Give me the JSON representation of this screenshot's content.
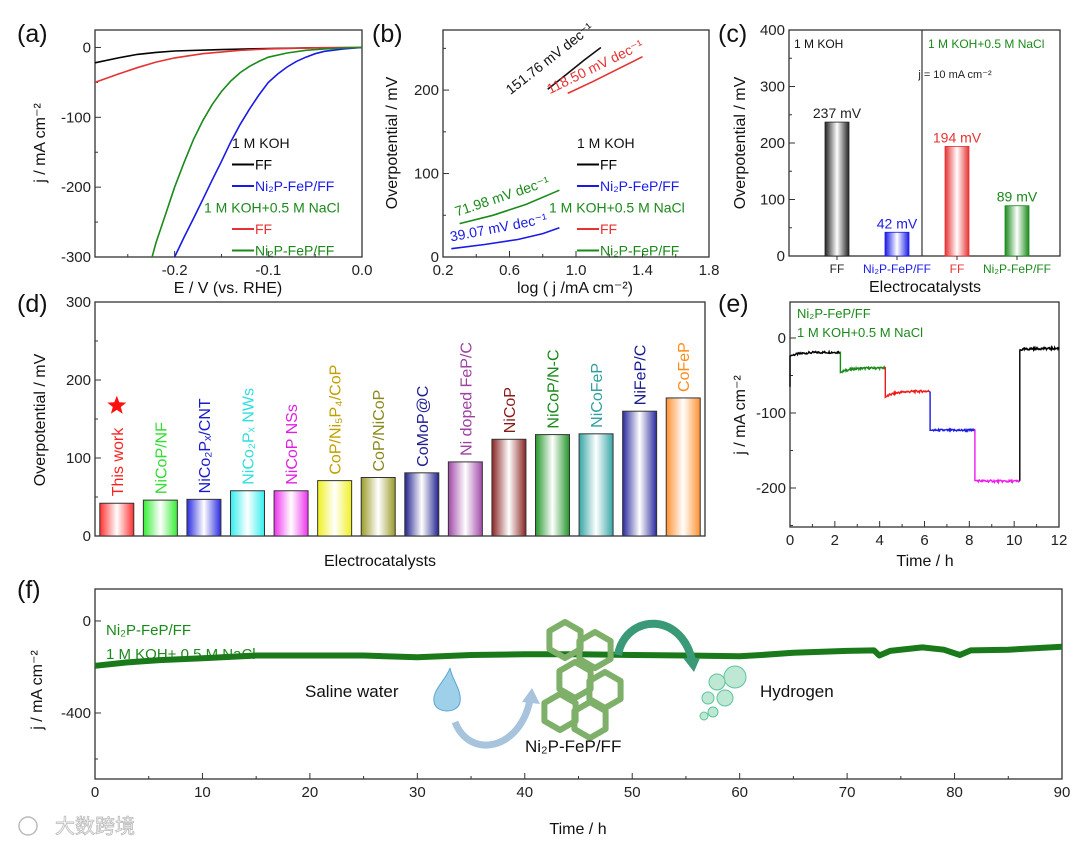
{
  "watermark": "大数跨境",
  "chart_data": [
    {
      "type": "line",
      "panel_label": "(a)",
      "xlabel": "E / V (vs. RHE)",
      "ylabel": "j / mA cm⁻²",
      "xlim": [
        -0.285,
        0
      ],
      "ylim": [
        -300,
        25
      ],
      "xticks": [
        -0.2,
        -0.1,
        0.0
      ],
      "xtick_labels": [
        "-0.2",
        "-0.1",
        "0.0"
      ],
      "yticks": [
        0,
        -100,
        -200,
        -300
      ],
      "ytick_labels": [
        "0",
        "-100",
        "-200",
        "-300"
      ],
      "legend_groups": [
        {
          "title": "1 M KOH",
          "title_color": "#111111",
          "entries": [
            {
              "label": "FF",
              "color": "#000000"
            },
            {
              "label": "Ni₂P-FeP/FF",
              "color": "#1a1ae6"
            }
          ]
        },
        {
          "title": "1 M KOH+0.5 M NaCl",
          "title_color": "#1a8a1a",
          "entries": [
            {
              "label": "FF",
              "color": "#e63232"
            },
            {
              "label": "Ni₂P-FeP/FF",
              "color": "#1a8a1a"
            }
          ]
        }
      ],
      "series": [
        {
          "name": "FF (1 M KOH)",
          "color": "#000000",
          "points": [
            [
              -0.285,
              -22
            ],
            [
              -0.26,
              -15
            ],
            [
              -0.24,
              -10
            ],
            [
              -0.22,
              -7
            ],
            [
              -0.2,
              -5
            ],
            [
              -0.15,
              -3
            ],
            [
              -0.1,
              -1.5
            ],
            [
              -0.05,
              -0.5
            ],
            [
              0,
              0
            ]
          ]
        },
        {
          "name": "FF (1 M KOH+0.5 M NaCl)",
          "color": "#e63232",
          "points": [
            [
              -0.285,
              -50
            ],
            [
              -0.26,
              -38
            ],
            [
              -0.24,
              -29
            ],
            [
              -0.22,
              -21
            ],
            [
              -0.2,
              -15
            ],
            [
              -0.17,
              -9
            ],
            [
              -0.13,
              -4
            ],
            [
              -0.1,
              -2
            ],
            [
              -0.05,
              -0.5
            ],
            [
              0,
              0
            ]
          ]
        },
        {
          "name": "Ni₂P-FeP/FF (1 M KOH)",
          "color": "#1a1ae6",
          "points": [
            [
              -0.2,
              -300
            ],
            [
              -0.19,
              -272
            ],
            [
              -0.18,
              -245
            ],
            [
              -0.17,
              -218
            ],
            [
              -0.16,
              -190
            ],
            [
              -0.15,
              -163
            ],
            [
              -0.14,
              -135
            ],
            [
              -0.13,
              -110
            ],
            [
              -0.12,
              -88
            ],
            [
              -0.11,
              -68
            ],
            [
              -0.1,
              -50
            ],
            [
              -0.09,
              -38
            ],
            [
              -0.08,
              -28
            ],
            [
              -0.07,
              -20
            ],
            [
              -0.06,
              -14
            ],
            [
              -0.05,
              -9
            ],
            [
              -0.04,
              -5.5
            ],
            [
              -0.02,
              -2
            ],
            [
              0,
              0
            ]
          ]
        },
        {
          "name": "Ni₂P-FeP/FF (1 M KOH+0.5 M NaCl)",
          "color": "#1a8a1a",
          "points": [
            [
              -0.224,
              -300
            ],
            [
              -0.22,
              -280
            ],
            [
              -0.21,
              -240
            ],
            [
              -0.2,
              -200
            ],
            [
              -0.19,
              -165
            ],
            [
              -0.18,
              -132
            ],
            [
              -0.17,
              -105
            ],
            [
              -0.16,
              -82
            ],
            [
              -0.15,
              -63
            ],
            [
              -0.14,
              -48
            ],
            [
              -0.13,
              -36
            ],
            [
              -0.12,
              -27
            ],
            [
              -0.11,
              -20
            ],
            [
              -0.1,
              -14
            ],
            [
              -0.08,
              -8
            ],
            [
              -0.06,
              -4
            ],
            [
              -0.04,
              -2
            ],
            [
              -0.02,
              -0.8
            ],
            [
              0,
              0
            ]
          ]
        }
      ]
    },
    {
      "type": "line",
      "panel_label": "(b)",
      "xlabel": "log ( j /mA cm⁻²)",
      "ylabel": "Overpotential / mV",
      "xlim": [
        0.2,
        1.8
      ],
      "ylim": [
        0,
        272
      ],
      "xticks": [
        0.2,
        0.6,
        1.0,
        1.4,
        1.8
      ],
      "xtick_labels": [
        "0.2",
        "0.6",
        "1.0",
        "1.4",
        "1.8"
      ],
      "yticks": [
        0,
        100,
        200
      ],
      "ytick_labels": [
        "0",
        "100",
        "200"
      ],
      "legend_groups": [
        {
          "title": "1 M KOH",
          "title_color": "#111111",
          "entries": [
            {
              "label": "FF",
              "color": "#000000"
            },
            {
              "label": "Ni₂P-FeP/FF",
              "color": "#1a1ae6"
            }
          ]
        },
        {
          "title": "1 M KOH+0.5 M NaCl",
          "title_color": "#1a8a1a",
          "entries": [
            {
              "label": "FF",
              "color": "#e63232"
            },
            {
              "label": "Ni₂P-FeP/FF",
              "color": "#1a8a1a"
            }
          ]
        }
      ],
      "series": [
        {
          "name": "FF (1 M KOH)",
          "color": "#111111",
          "slope_label": "151.76 mV dec⁻¹",
          "points": [
            [
              0.83,
              201
            ],
            [
              0.95,
              220
            ],
            [
              1.05,
              236
            ],
            [
              1.15,
              251
            ]
          ]
        },
        {
          "name": "FF (1 M KOH+0.5 M NaCl)",
          "color": "#e63232",
          "slope_label": "118.50 mV dec⁻¹",
          "points": [
            [
              0.95,
              196
            ],
            [
              1.1,
              210
            ],
            [
              1.25,
              225
            ],
            [
              1.4,
              240
            ]
          ]
        },
        {
          "name": "Ni₂P-FeP/FF (1 M KOH+0.5 M NaCl)",
          "color": "#1a8a1a",
          "slope_label": "71.98 mV dec⁻¹",
          "points": [
            [
              0.3,
              40
            ],
            [
              0.5,
              50
            ],
            [
              0.7,
              63
            ],
            [
              0.9,
              80
            ]
          ]
        },
        {
          "name": "Ni₂P-FeP/FF (1 M KOH)",
          "color": "#1a1ae6",
          "slope_label": "39.07 mV dec⁻¹",
          "points": [
            [
              0.25,
              10
            ],
            [
              0.45,
              15
            ],
            [
              0.65,
              21
            ],
            [
              0.8,
              28
            ],
            [
              0.9,
              35
            ]
          ]
        }
      ]
    },
    {
      "type": "bar",
      "panel_label": "(c)",
      "xlabel": "Electrocatalysts",
      "ylabel": "Overpotential / mV",
      "ylim": [
        0,
        400
      ],
      "yticks": [
        0,
        100,
        200,
        300,
        400
      ],
      "ytick_labels": [
        "0",
        "100",
        "200",
        "300",
        "400"
      ],
      "group_labels": [
        {
          "text": "1 M KOH",
          "color": "#111111"
        },
        {
          "text": "1 M KOH+0.5 M NaCl",
          "color": "#1a8a1a"
        }
      ],
      "annotation": "j = 10 mA cm⁻²",
      "categories": [
        "FF",
        "Ni₂P-FeP/FF",
        "FF",
        "Ni₂P-FeP/FF"
      ],
      "values": [
        237,
        42,
        194,
        89
      ],
      "value_labels": [
        "237 mV",
        "42 mV",
        "194 mV",
        "89 mV"
      ],
      "colors": [
        "#222222",
        "#1a1ae6",
        "#e63232",
        "#1a8a1a"
      ]
    },
    {
      "type": "bar",
      "panel_label": "(d)",
      "xlabel": "Electrocatalysts",
      "ylabel": "Overpotential / mV",
      "ylim": [
        0,
        300
      ],
      "yticks": [
        0,
        100,
        200,
        300
      ],
      "ytick_labels": [
        "0",
        "100",
        "200",
        "300"
      ],
      "categories": [
        "This work",
        "NiCoP/NF",
        "NiCo₂Pₓ/CNT",
        "NiCo₂Pₓ NWs",
        "NiCoP NSs",
        "CoP/Ni₅P₄/CoP",
        "CoP/NiCoP",
        "CoMoP@C",
        "Ni doped FeP/C",
        "NiCoP",
        "NiCoP/N-C",
        "NiCoFeP",
        "NiFeP/C",
        "CoFeP"
      ],
      "values": [
        42,
        46,
        47,
        58,
        58,
        71,
        75,
        81,
        95,
        124,
        130,
        131,
        160,
        177
      ],
      "colors": [
        "#ff3030",
        "#33ee33",
        "#2a2ae0",
        "#33eeee",
        "#ee33ee",
        "#f0f020",
        "#9a9a28",
        "#23238f",
        "#a048a8",
        "#8b2424",
        "#23962a",
        "#35a5a5",
        "#2a2a9e",
        "#ff9030"
      ],
      "label_colors": [
        "#ff2020",
        "#33dd33",
        "#1a1acc",
        "#33dddd",
        "#e020e0",
        "#c0a000",
        "#8a8a20",
        "#202090",
        "#a040a0",
        "#8b1a1a",
        "#1a8a1a",
        "#30a0a0",
        "#1a1a90",
        "#ff8c1a"
      ],
      "highlight": "This work"
    },
    {
      "type": "line",
      "panel_label": "(e)",
      "xlabel": "Time / h",
      "ylabel": "j / mA cm⁻²",
      "xlim": [
        0,
        12
      ],
      "ylim": [
        -252,
        48
      ],
      "xticks": [
        0,
        2,
        4,
        6,
        8,
        10,
        12
      ],
      "xtick_labels": [
        "0",
        "2",
        "4",
        "6",
        "8",
        "10",
        "12"
      ],
      "yticks": [
        0,
        -100,
        -200
      ],
      "ytick_labels": [
        "0",
        "-100",
        "-200"
      ],
      "legend": [
        "Ni₂P-FeP/FF",
        "1 M KOH+0.5 M NaCl"
      ],
      "legend_color": "#1a8a1a",
      "segments": [
        {
          "t": [
            0,
            2.25
          ],
          "j": [
            -24,
            -19
          ],
          "color": "#000000"
        },
        {
          "t": [
            2.25,
            4.25
          ],
          "j": [
            -46,
            -40
          ],
          "color": "#1a8a1a"
        },
        {
          "t": [
            4.25,
            6.25
          ],
          "j": [
            -79,
            -71
          ],
          "color": "#ee1a1a"
        },
        {
          "t": [
            6.25,
            8.25
          ],
          "j": [
            -123,
            -123
          ],
          "color": "#1a1ae6"
        },
        {
          "t": [
            8.25,
            10.25
          ],
          "j": [
            -190,
            -191
          ],
          "color": "#ee1aee"
        },
        {
          "t": [
            10.25,
            12
          ],
          "j": [
            -16,
            -14
          ],
          "color": "#000000"
        }
      ]
    },
    {
      "type": "line",
      "panel_label": "(f)",
      "xlabel": "Time / h",
      "ylabel": "j / mA cm⁻²",
      "xlim": [
        0,
        90
      ],
      "ylim": [
        -687,
        139
      ],
      "xticks": [
        0,
        10,
        20,
        30,
        40,
        50,
        60,
        70,
        80,
        90
      ],
      "xtick_labels": [
        "0",
        "10",
        "20",
        "30",
        "40",
        "50",
        "60",
        "70",
        "80",
        "90"
      ],
      "yticks": [
        0,
        -400
      ],
      "ytick_labels": [
        "0",
        "-400"
      ],
      "legend": [
        "Ni₂P-FeP/FF",
        "1 M KOH+ 0.5 M NaCl"
      ],
      "legend_color": "#1a8a1a",
      "series": [
        {
          "name": "Ni₂P-FeP/FF",
          "color": "#1a7a1a",
          "points": [
            [
              0,
              -195
            ],
            [
              3,
              -180
            ],
            [
              6,
              -170
            ],
            [
              10,
              -162
            ],
            [
              15,
              -150
            ],
            [
              20,
              -150
            ],
            [
              25,
              -150
            ],
            [
              30,
              -158
            ],
            [
              35,
              -148
            ],
            [
              40,
              -145
            ],
            [
              45,
              -145
            ],
            [
              50,
              -148
            ],
            [
              55,
              -150
            ],
            [
              60,
              -153
            ],
            [
              62,
              -148
            ],
            [
              65,
              -138
            ],
            [
              70,
              -130
            ],
            [
              72.5,
              -128
            ],
            [
              73,
              -150
            ],
            [
              74,
              -130
            ],
            [
              77,
              -115
            ],
            [
              79,
              -125
            ],
            [
              80.5,
              -148
            ],
            [
              81.5,
              -128
            ],
            [
              85,
              -125
            ],
            [
              90,
              -112
            ]
          ]
        }
      ],
      "illustration_labels": {
        "source": "Saline water",
        "product": "Hydrogen",
        "catalyst": "Ni₂P-FeP/FF"
      }
    }
  ]
}
